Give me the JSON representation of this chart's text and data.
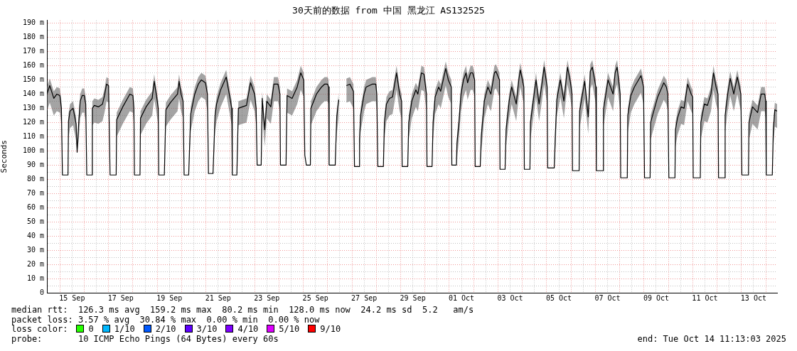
{
  "chart_data": {
    "type": "line",
    "title": "30天前的数据 from 中国 黑龙江 AS132525",
    "ylabel": "Seconds",
    "legend_title": "loss color:",
    "legend": "bottom",
    "grid": true,
    "xlim": [
      "2025-09-14T11:13",
      "2025-10-14T11:13"
    ],
    "xticks": [
      {
        "value": "2025-09-15T00:00",
        "label": null
      },
      {
        "value": "2025-09-15T12:00",
        "label": "15 Sep"
      },
      {
        "value": "2025-09-16T00:00",
        "label": null
      },
      {
        "value": "2025-09-16T12:00",
        "label": null
      },
      {
        "value": "2025-09-17T00:00",
        "label": null
      },
      {
        "value": "2025-09-17T12:00",
        "label": "17 Sep"
      },
      {
        "value": "2025-09-18T00:00",
        "label": null
      },
      {
        "value": "2025-09-18T12:00",
        "label": null
      },
      {
        "value": "2025-09-19T00:00",
        "label": null
      },
      {
        "value": "2025-09-19T12:00",
        "label": "19 Sep"
      },
      {
        "value": "2025-09-20T00:00",
        "label": null
      },
      {
        "value": "2025-09-20T12:00",
        "label": null
      },
      {
        "value": "2025-09-21T00:00",
        "label": null
      },
      {
        "value": "2025-09-21T12:00",
        "label": "21 Sep"
      },
      {
        "value": "2025-09-22T00:00",
        "label": null
      },
      {
        "value": "2025-09-22T12:00",
        "label": null
      },
      {
        "value": "2025-09-23T00:00",
        "label": null
      },
      {
        "value": "2025-09-23T12:00",
        "label": "23 Sep"
      },
      {
        "value": "2025-09-24T00:00",
        "label": null
      },
      {
        "value": "2025-09-24T12:00",
        "label": null
      },
      {
        "value": "2025-09-25T00:00",
        "label": null
      },
      {
        "value": "2025-09-25T12:00",
        "label": "25 Sep"
      },
      {
        "value": "2025-09-26T00:00",
        "label": null
      },
      {
        "value": "2025-09-26T12:00",
        "label": null
      },
      {
        "value": "2025-09-27T00:00",
        "label": null
      },
      {
        "value": "2025-09-27T12:00",
        "label": "27 Sep"
      },
      {
        "value": "2025-09-28T00:00",
        "label": null
      },
      {
        "value": "2025-09-28T12:00",
        "label": null
      },
      {
        "value": "2025-09-29T00:00",
        "label": null
      },
      {
        "value": "2025-09-29T12:00",
        "label": "29 Sep"
      },
      {
        "value": "2025-09-30T00:00",
        "label": null
      },
      {
        "value": "2025-09-30T12:00",
        "label": null
      },
      {
        "value": "2025-10-01T00:00",
        "label": null
      },
      {
        "value": "2025-10-01T12:00",
        "label": "01 Oct"
      },
      {
        "value": "2025-10-02T00:00",
        "label": null
      },
      {
        "value": "2025-10-02T12:00",
        "label": null
      },
      {
        "value": "2025-10-03T00:00",
        "label": null
      },
      {
        "value": "2025-10-03T12:00",
        "label": "03 Oct"
      },
      {
        "value": "2025-10-04T00:00",
        "label": null
      },
      {
        "value": "2025-10-04T12:00",
        "label": null
      },
      {
        "value": "2025-10-05T00:00",
        "label": null
      },
      {
        "value": "2025-10-05T12:00",
        "label": "05 Oct"
      },
      {
        "value": "2025-10-06T00:00",
        "label": null
      },
      {
        "value": "2025-10-06T12:00",
        "label": null
      },
      {
        "value": "2025-10-07T00:00",
        "label": null
      },
      {
        "value": "2025-10-07T12:00",
        "label": "07 Oct"
      },
      {
        "value": "2025-10-08T00:00",
        "label": null
      },
      {
        "value": "2025-10-08T12:00",
        "label": null
      },
      {
        "value": "2025-10-09T00:00",
        "label": null
      },
      {
        "value": "2025-10-09T12:00",
        "label": "09 Oct"
      },
      {
        "value": "2025-10-10T00:00",
        "label": null
      },
      {
        "value": "2025-10-10T12:00",
        "label": null
      },
      {
        "value": "2025-10-11T00:00",
        "label": null
      },
      {
        "value": "2025-10-11T12:00",
        "label": "11 Oct"
      },
      {
        "value": "2025-10-12T00:00",
        "label": null
      },
      {
        "value": "2025-10-12T12:00",
        "label": null
      },
      {
        "value": "2025-10-13T00:00",
        "label": null
      },
      {
        "value": "2025-10-13T12:00",
        "label": "13 Oct"
      },
      {
        "value": "2025-10-14T00:00",
        "label": null
      }
    ],
    "ylim": [
      0,
      192
    ],
    "yticks": [
      0,
      {
        "value": 5,
        "label": null
      },
      {
        "value": 10,
        "label": "10 m"
      },
      {
        "value": 15,
        "label": null
      },
      {
        "value": 20,
        "label": "20 m"
      },
      {
        "value": 25,
        "label": null
      },
      {
        "value": 30,
        "label": "30 m"
      },
      {
        "value": 35,
        "label": null
      },
      {
        "value": 40,
        "label": "40 m"
      },
      {
        "value": 45,
        "label": null
      },
      {
        "value": 50,
        "label": "50 m"
      },
      {
        "value": 55,
        "label": null
      },
      {
        "value": 60,
        "label": "60 m"
      },
      {
        "value": 65,
        "label": null
      },
      {
        "value": 70,
        "label": "70 m"
      },
      {
        "value": 75,
        "label": null
      },
      {
        "value": 80,
        "label": "80 m"
      },
      {
        "value": 85,
        "label": null
      },
      {
        "value": 90,
        "label": "90 m"
      },
      {
        "value": 95,
        "label": null
      },
      {
        "value": 100,
        "label": "100 m"
      },
      {
        "value": 105,
        "label": null
      },
      {
        "value": 110,
        "label": "110 m"
      },
      {
        "value": 115,
        "label": null
      },
      {
        "value": 120,
        "label": "120 m"
      },
      {
        "value": 125,
        "label": null
      },
      {
        "value": 130,
        "label": "130 m"
      },
      {
        "value": 135,
        "label": null
      },
      {
        "value": 140,
        "label": "140 m"
      },
      {
        "value": 145,
        "label": null
      },
      {
        "value": 150,
        "label": "150 m"
      },
      {
        "value": 155,
        "label": null
      },
      {
        "value": 160,
        "label": "160 m"
      },
      {
        "value": 165,
        "label": null
      },
      {
        "value": 170,
        "label": "170 m"
      },
      {
        "value": 175,
        "label": null
      },
      {
        "value": 180,
        "label": "180 m"
      },
      {
        "value": 185,
        "label": null
      },
      {
        "value": 190,
        "label": "190 m"
      }
    ],
    "annotations": [
      "median rtt:  126.3 ms avg  159.2 ms max  80.2 ms min  128.0 ms now  24.2 ms sd  5.2   am/s",
      "packet loss: 3.57 % avg  30.84 % max  0.00 % min  0.00 % now",
      "probe:       10 ICMP Echo Pings (64 Bytes) every 60s",
      "end: Tue Oct 14 11:13:03 2025"
    ],
    "series": [
      {
        "color": "#000000",
        "x": [
          "2025-09-14T11:13",
          "2025-09-14T14:00",
          "2025-09-14T18:00",
          "2025-09-14T21:00",
          "2025-09-15T00:00",
          "2025-09-15T01:30",
          "2025-09-15T02:30",
          "2025-09-15T08:00",
          "2025-09-15T08:30",
          "2025-09-15T10:00",
          "2025-09-15T13:00",
          "2025-09-15T16:00",
          "2025-09-15T17:00",
          "2025-09-15T18:30",
          "2025-09-15T20:00",
          "2025-09-15T22:00",
          "2025-09-16T00:00",
          "2025-09-16T01:30",
          "2025-09-16T02:30",
          "2025-09-16T07:30",
          "2025-09-16T08:00",
          "2025-09-16T10:00",
          "2025-09-16T14:00",
          "2025-09-16T18:00",
          "2025-09-16T20:00",
          "2025-09-16T22:00",
          "2025-09-17T00:00",
          "2025-09-17T01:30",
          "2025-09-17T07:30",
          "2025-09-17T08:00",
          "2025-09-17T14:00",
          "2025-09-17T21:00",
          "2025-09-18T00:00",
          "2025-09-18T01:00",
          "2025-09-18T01:30",
          "2025-09-18T07:00",
          "2025-09-18T07:30",
          "2025-09-18T13:00",
          "2025-09-18T19:00",
          "2025-09-18T21:00",
          "2025-09-18T23:00",
          "2025-09-19T01:00",
          "2025-09-19T01:30",
          "2025-09-19T07:00",
          "2025-09-19T08:30",
          "2025-09-19T13:00",
          "2025-09-19T20:00",
          "2025-09-19T21:30",
          "2025-09-19T23:30",
          "2025-09-20T01:30",
          "2025-09-20T02:30",
          "2025-09-20T07:00",
          "2025-09-20T09:00",
          "2025-09-20T13:00",
          "2025-09-20T16:30",
          "2025-09-20T19:30",
          "2025-09-20T23:30",
          "2025-09-21T01:30",
          "2025-09-21T02:30",
          "2025-09-21T07:00",
          "2025-09-21T09:00",
          "2025-09-21T10:30",
          "2025-09-21T14:30",
          "2025-09-21T20:00",
          "2025-09-21T23:00",
          "2025-09-22T01:30",
          "2025-09-22T02:00",
          "2025-09-22T06:30",
          "2025-09-22T08:00",
          "2025-09-22T12:00",
          "2025-09-22T16:00",
          "2025-09-22T20:00",
          "2025-09-23T00:00",
          "2025-09-23T01:30",
          "2025-09-23T02:30",
          "2025-09-23T06:30",
          "2025-09-23T07:30",
          "2025-09-23T10:00",
          "2025-09-23T12:00",
          "2025-09-23T16:00",
          "2025-09-23T19:00",
          "2025-09-23T23:00",
          "2025-09-24T01:00",
          "2025-09-24T01:30",
          "2025-09-24T07:00",
          "2025-09-24T08:00",
          "2025-09-24T13:00",
          "2025-09-24T18:00",
          "2025-09-24T21:30",
          "2025-09-25T00:30",
          "2025-09-25T01:30",
          "2025-09-25T03:00",
          "2025-09-25T07:00",
          "2025-09-25T07:30",
          "2025-09-25T13:00",
          "2025-09-25T18:00",
          "2025-09-25T21:00",
          "2025-09-26T00:00",
          "2025-09-26T01:00",
          "2025-09-26T01:30",
          "2025-09-26T07:30",
          "2025-09-26T09:00",
          "2025-09-26T11:00",
          "2025-09-26T14:00",
          "2025-09-26T18:30",
          "2025-09-26T22:00",
          "2025-09-27T01:30",
          "2025-09-27T02:30",
          "2025-09-27T07:00",
          "2025-09-27T07:30",
          "2025-09-27T08:30",
          "2025-09-27T12:00",
          "2025-09-27T14:00",
          "2025-09-27T20:00",
          "2025-09-27T23:30",
          "2025-09-28T00:30",
          "2025-09-28T01:30",
          "2025-09-28T07:00",
          "2025-09-28T08:00",
          "2025-09-28T10:00",
          "2025-09-28T13:00",
          "2025-09-28T16:00",
          "2025-09-28T20:00",
          "2025-09-28T23:00",
          "2025-09-29T01:00",
          "2025-09-29T01:30",
          "2025-09-29T07:00",
          "2025-09-29T08:00",
          "2025-09-29T11:00",
          "2025-09-29T15:00",
          "2025-09-29T17:00",
          "2025-09-29T20:30",
          "2025-09-29T23:00",
          "2025-09-30T01:30",
          "2025-09-30T02:00",
          "2025-09-30T07:00",
          "2025-09-30T08:00",
          "2025-09-30T10:00",
          "2025-09-30T13:30",
          "2025-09-30T15:30",
          "2025-09-30T20:30",
          "2025-09-30T23:00",
          "2025-10-01T02:00",
          "2025-10-01T02:30",
          "2025-10-01T07:00",
          "2025-10-01T07:30",
          "2025-10-01T09:30",
          "2025-10-01T11:30",
          "2025-10-01T14:00",
          "2025-10-01T16:30",
          "2025-10-01T18:00",
          "2025-10-01T21:00",
          "2025-10-01T23:00",
          "2025-10-02T01:00",
          "2025-10-02T01:30",
          "2025-10-02T06:30",
          "2025-10-02T07:30",
          "2025-10-02T10:30",
          "2025-10-02T14:00",
          "2025-10-02T17:00",
          "2025-10-02T20:30",
          "2025-10-02T22:00",
          "2025-10-03T01:30",
          "2025-10-03T02:00",
          "2025-10-03T07:00",
          "2025-10-03T08:00",
          "2025-10-03T11:00",
          "2025-10-03T13:30",
          "2025-10-03T18:00",
          "2025-10-03T20:30",
          "2025-10-03T22:00",
          "2025-10-04T01:30",
          "2025-10-04T02:00",
          "2025-10-04T07:30",
          "2025-10-04T08:00",
          "2025-10-04T13:30",
          "2025-10-04T16:30",
          "2025-10-04T19:30",
          "2025-10-04T21:30",
          "2025-10-05T00:30",
          "2025-10-05T01:00",
          "2025-10-05T07:30",
          "2025-10-05T08:30",
          "2025-10-05T10:00",
          "2025-10-05T13:30",
          "2025-10-05T17:00",
          "2025-10-05T20:30",
          "2025-10-05T23:30",
          "2025-10-06T01:00",
          "2025-10-06T01:30",
          "2025-10-06T08:00",
          "2025-10-06T08:30",
          "2025-10-06T13:30",
          "2025-10-06T17:00",
          "2025-10-06T19:00",
          "2025-10-06T21:00",
          "2025-10-07T00:30",
          "2025-10-07T01:00",
          "2025-10-07T07:30",
          "2025-10-07T08:00",
          "2025-10-07T12:30",
          "2025-10-07T17:30",
          "2025-10-07T19:30",
          "2025-10-07T21:30",
          "2025-10-08T00:30",
          "2025-10-08T01:00",
          "2025-10-08T07:30",
          "2025-10-08T08:00",
          "2025-10-08T11:00",
          "2025-10-08T14:30",
          "2025-10-08T21:00",
          "2025-10-08T23:30",
          "2025-10-09T00:30",
          "2025-10-09T06:00",
          "2025-10-09T06:30",
          "2025-10-09T10:00",
          "2025-10-09T13:30",
          "2025-10-09T19:30",
          "2025-10-09T22:00",
          "2025-10-09T23:30",
          "2025-10-10T00:30",
          "2025-10-10T06:30",
          "2025-10-10T07:00",
          "2025-10-10T09:00",
          "2025-10-10T12:30",
          "2025-10-10T15:30",
          "2025-10-10T19:00",
          "2025-10-10T22:30",
          "2025-10-11T00:00",
          "2025-10-11T00:30",
          "2025-10-11T07:30",
          "2025-10-11T08:00",
          "2025-10-11T11:30",
          "2025-10-11T14:30",
          "2025-10-11T18:00",
          "2025-10-11T20:30",
          "2025-10-11T23:00",
          "2025-10-12T01:00",
          "2025-10-12T01:30",
          "2025-10-12T07:30",
          "2025-10-12T08:00",
          "2025-10-12T10:30",
          "2025-10-12T13:00",
          "2025-10-12T16:30",
          "2025-10-12T20:00",
          "2025-10-12T22:00",
          "2025-10-12T23:30",
          "2025-10-13T00:30",
          "2025-10-13T07:00",
          "2025-10-13T07:30",
          "2025-10-13T11:00",
          "2025-10-13T16:00",
          "2025-10-13T19:30",
          "2025-10-13T23:00",
          "2025-10-14T00:00",
          "2025-10-14T00:30",
          "2025-10-14T06:30",
          "2025-10-14T07:30",
          "2025-10-14T09:00",
          "2025-10-14T11:13"
        ],
        "values": [
          140,
          146,
          137,
          140,
          139,
          130,
          83,
          83,
          121,
          128,
          130,
          119,
          99,
          119,
          135,
          139,
          139,
          133,
          83,
          83,
          130,
          132,
          131,
          133,
          139,
          147,
          146,
          83,
          83,
          122,
          131,
          140,
          139,
          130,
          83,
          83,
          123,
          131,
          137,
          149,
          140,
          130,
          83,
          83,
          129,
          134,
          140,
          149,
          140,
          135,
          83,
          83,
          126,
          140,
          147,
          150,
          148,
          140,
          84,
          84,
          125,
          133,
          143,
          152,
          140,
          130,
          83,
          83,
          130,
          131,
          132,
          148,
          140,
          130,
          90,
          90,
          137,
          115,
          135,
          131,
          147,
          147,
          140,
          90,
          90,
          139,
          137,
          145,
          155,
          150,
          97,
          90,
          90,
          130,
          140,
          145,
          147,
          147,
          145,
          90,
          90,
          124,
          136,
          null,
          146,
          147,
          142,
          89,
          89,
          108,
          125,
          140,
          145,
          147,
          147,
          140,
          89,
          89,
          120,
          133,
          137,
          138,
          155,
          140,
          135,
          89,
          89,
          120,
          135,
          143,
          140,
          155,
          154,
          140,
          89,
          89,
          120,
          138,
          145,
          142,
          158,
          150,
          145,
          90,
          90,
          105,
          120,
          140,
          150,
          155,
          148,
          155,
          155,
          150,
          89,
          89,
          110,
          135,
          145,
          140,
          155,
          156,
          150,
          87,
          87,
          115,
          135,
          145,
          133,
          150,
          157,
          145,
          87,
          87,
          120,
          150,
          133,
          148,
          159,
          145,
          88,
          88,
          110,
          136,
          150,
          135,
          159,
          148,
          140,
          86,
          86,
          128,
          149,
          124,
          156,
          159,
          145,
          86,
          86,
          129,
          150,
          140,
          155,
          159,
          140,
          81,
          81,
          125,
          139,
          145,
          153,
          145,
          81,
          81,
          120,
          129,
          138,
          148,
          145,
          140,
          81,
          81,
          115,
          123,
          131,
          130,
          147,
          140,
          138,
          81,
          81,
          120,
          133,
          132,
          140,
          155,
          145,
          140,
          81,
          81,
          125,
          140,
          151,
          140,
          152,
          145,
          140,
          83,
          83,
          120,
          131,
          127,
          140,
          140,
          135,
          83,
          83,
          115,
          129,
          128
        ],
        "lower": [
          128,
          134,
          125,
          128,
          127,
          118,
          83,
          83,
          109,
          116,
          118,
          107,
          99,
          107,
          123,
          127,
          127,
          121,
          83,
          83,
          118,
          120,
          119,
          121,
          127,
          135,
          134,
          83,
          83,
          110,
          119,
          128,
          127,
          118,
          83,
          83,
          111,
          119,
          125,
          137,
          128,
          118,
          83,
          83,
          117,
          122,
          128,
          137,
          128,
          123,
          83,
          83,
          114,
          128,
          135,
          138,
          136,
          128,
          84,
          84,
          113,
          121,
          131,
          140,
          128,
          118,
          83,
          83,
          118,
          119,
          120,
          136,
          128,
          118,
          90,
          90,
          125,
          103,
          123,
          119,
          135,
          135,
          128,
          90,
          90,
          127,
          125,
          133,
          143,
          138,
          97,
          90,
          90,
          118,
          128,
          133,
          135,
          135,
          133,
          90,
          90,
          112,
          124,
          null,
          134,
          135,
          130,
          89,
          89,
          96,
          113,
          128,
          133,
          135,
          135,
          128,
          89,
          89,
          108,
          121,
          125,
          126,
          143,
          128,
          123,
          89,
          89,
          108,
          123,
          131,
          128,
          143,
          142,
          128,
          89,
          89,
          108,
          126,
          133,
          130,
          146,
          138,
          133,
          90,
          90,
          93,
          108,
          128,
          138,
          143,
          136,
          143,
          143,
          138,
          89,
          89,
          98,
          123,
          133,
          128,
          143,
          144,
          138,
          87,
          87,
          103,
          123,
          133,
          121,
          138,
          145,
          133,
          87,
          87,
          108,
          138,
          121,
          136,
          147,
          133,
          88,
          88,
          98,
          124,
          138,
          123,
          147,
          136,
          128,
          86,
          86,
          116,
          137,
          112,
          144,
          147,
          133,
          86,
          86,
          117,
          138,
          128,
          143,
          147,
          128,
          81,
          81,
          113,
          127,
          133,
          141,
          133,
          81,
          81,
          108,
          117,
          126,
          136,
          133,
          128,
          81,
          81,
          103,
          111,
          119,
          118,
          135,
          128,
          126,
          81,
          81,
          108,
          121,
          120,
          128,
          143,
          133,
          128,
          81,
          81,
          113,
          128,
          139,
          128,
          140,
          133,
          128,
          83,
          83,
          108,
          119,
          115,
          128,
          128,
          123,
          83,
          83,
          103,
          117,
          116
        ],
        "upper": [
          145,
          151,
          142,
          145,
          144,
          135,
          83,
          83,
          126,
          133,
          135,
          124,
          99,
          124,
          140,
          144,
          144,
          138,
          83,
          83,
          135,
          137,
          136,
          138,
          144,
          152,
          151,
          83,
          83,
          127,
          136,
          145,
          144,
          135,
          83,
          83,
          128,
          136,
          142,
          154,
          145,
          135,
          83,
          83,
          134,
          139,
          145,
          154,
          145,
          140,
          83,
          83,
          131,
          145,
          152,
          155,
          153,
          145,
          84,
          84,
          130,
          138,
          148,
          157,
          145,
          135,
          83,
          83,
          135,
          136,
          137,
          153,
          145,
          135,
          90,
          90,
          142,
          120,
          140,
          136,
          152,
          152,
          145,
          90,
          90,
          144,
          142,
          150,
          160,
          155,
          97,
          90,
          90,
          135,
          145,
          150,
          152,
          152,
          150,
          90,
          90,
          129,
          141,
          null,
          151,
          152,
          147,
          89,
          89,
          113,
          130,
          145,
          150,
          152,
          152,
          145,
          89,
          89,
          125,
          138,
          142,
          143,
          160,
          145,
          140,
          89,
          89,
          125,
          140,
          148,
          145,
          160,
          159,
          145,
          89,
          89,
          125,
          143,
          150,
          147,
          163,
          155,
          150,
          90,
          90,
          110,
          125,
          145,
          155,
          160,
          153,
          160,
          160,
          155,
          89,
          89,
          115,
          140,
          150,
          145,
          160,
          161,
          155,
          87,
          87,
          120,
          140,
          150,
          138,
          155,
          162,
          150,
          87,
          87,
          125,
          155,
          138,
          153,
          164,
          150,
          88,
          88,
          115,
          141,
          155,
          140,
          164,
          153,
          145,
          86,
          86,
          133,
          154,
          129,
          161,
          164,
          150,
          86,
          86,
          134,
          155,
          145,
          160,
          164,
          145,
          81,
          81,
          130,
          144,
          150,
          158,
          150,
          81,
          81,
          125,
          134,
          143,
          153,
          150,
          145,
          81,
          81,
          120,
          128,
          136,
          135,
          152,
          145,
          143,
          81,
          81,
          125,
          138,
          137,
          145,
          160,
          150,
          145,
          81,
          81,
          130,
          145,
          156,
          145,
          157,
          150,
          145,
          83,
          83,
          125,
          136,
          132,
          145,
          145,
          140,
          83,
          83,
          120,
          134,
          133
        ]
      },
      {
        "name": "0",
        "color": "#26ff00"
      },
      {
        "name": "1/10",
        "color": "#00b8ff"
      },
      {
        "name": "2/10",
        "color": "#0059ff"
      },
      {
        "name": "3/10",
        "color": "#5e00ff"
      },
      {
        "name": "4/10",
        "color": "#7e00ff"
      },
      {
        "name": "5/10",
        "color": "#dd00ff"
      },
      {
        "name": "9/10",
        "color": "#ff0000"
      }
    ]
  }
}
